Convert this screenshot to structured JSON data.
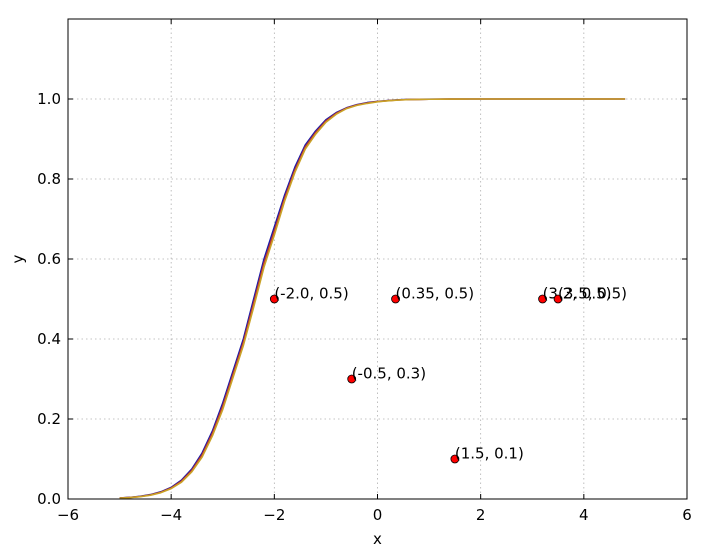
{
  "chart_data": {
    "type": "line",
    "title": "",
    "xlabel": "x",
    "ylabel": "y",
    "xlim": [
      -6,
      6
    ],
    "ylim": [
      0,
      1.2
    ],
    "xticks": [
      -6,
      -4,
      -2,
      0,
      2,
      4,
      6
    ],
    "yticks": [
      0.0,
      0.2,
      0.4,
      0.6,
      0.8,
      1.0
    ],
    "xtick_labels": [
      "−6",
      "−4",
      "−2",
      "0",
      "2",
      "4",
      "6"
    ],
    "ytick_labels": [
      "0.0",
      "0.2",
      "0.4",
      "0.6",
      "0.8",
      "1.0"
    ],
    "grid": true,
    "series": [
      {
        "color": "#1a1aa8",
        "x": [
          -5.0,
          -4.8,
          -4.6,
          -4.4,
          -4.2,
          -4.0,
          -3.8,
          -3.6,
          -3.4,
          -3.2,
          -3.0,
          -2.8,
          -2.6,
          -2.4,
          -2.2,
          -2.0,
          -1.8,
          -1.6,
          -1.4,
          -1.2,
          -1.0,
          -0.8,
          -0.6,
          -0.4,
          -0.2,
          0.0,
          0.2,
          0.4,
          0.6,
          0.8,
          1.0,
          1.2,
          1.4,
          1.6,
          1.8,
          2.0,
          2.4,
          2.8,
          3.2,
          3.6,
          4.0,
          4.4,
          4.8
        ],
        "y": [
          0.0025,
          0.0041,
          0.0067,
          0.011,
          0.018,
          0.029,
          0.047,
          0.075,
          0.115,
          0.17,
          0.24,
          0.32,
          0.4,
          0.5,
          0.6,
          0.68,
          0.76,
          0.83,
          0.885,
          0.92,
          0.948,
          0.966,
          0.978,
          0.986,
          0.991,
          0.994,
          0.996,
          0.998,
          0.999,
          0.9992,
          0.9995,
          0.9997,
          0.9998,
          0.9999,
          1.0,
          1.0,
          1.0,
          1.0,
          1.0,
          1.0,
          1.0,
          1.0,
          1.0
        ]
      },
      {
        "color": "#c0392b",
        "x": [
          -5.0,
          -4.8,
          -4.6,
          -4.4,
          -4.2,
          -4.0,
          -3.8,
          -3.6,
          -3.4,
          -3.2,
          -3.0,
          -2.8,
          -2.6,
          -2.4,
          -2.2,
          -2.0,
          -1.8,
          -1.6,
          -1.4,
          -1.2,
          -1.0,
          -0.8,
          -0.6,
          -0.4,
          -0.2,
          0.0,
          0.2,
          0.4,
          0.6,
          0.8,
          1.0,
          1.2,
          1.4,
          1.6,
          1.8,
          2.0,
          2.4,
          2.8,
          3.2,
          3.6,
          4.0,
          4.4,
          4.8
        ],
        "y": [
          0.0023,
          0.0038,
          0.0062,
          0.0102,
          0.0168,
          0.0275,
          0.0445,
          0.0715,
          0.11,
          0.164,
          0.232,
          0.312,
          0.392,
          0.49,
          0.59,
          0.67,
          0.752,
          0.823,
          0.88,
          0.916,
          0.945,
          0.964,
          0.977,
          0.985,
          0.99,
          0.9935,
          0.9958,
          0.9975,
          0.9987,
          0.999,
          0.9994,
          0.9996,
          0.9998,
          0.9999,
          1.0,
          1.0,
          1.0,
          1.0,
          1.0,
          1.0,
          1.0,
          1.0,
          1.0
        ]
      },
      {
        "color": "#c9a227",
        "x": [
          -5.0,
          -4.8,
          -4.6,
          -4.4,
          -4.2,
          -4.0,
          -3.8,
          -3.6,
          -3.4,
          -3.2,
          -3.0,
          -2.8,
          -2.6,
          -2.4,
          -2.2,
          -2.0,
          -1.8,
          -1.6,
          -1.4,
          -1.2,
          -1.0,
          -0.8,
          -0.6,
          -0.4,
          -0.2,
          0.0,
          0.2,
          0.4,
          0.6,
          0.8,
          1.0,
          1.2,
          1.4,
          1.6,
          1.8,
          2.0,
          2.4,
          2.8,
          3.2,
          3.6,
          4.0,
          4.4,
          4.8
        ],
        "y": [
          0.0021,
          0.0035,
          0.0058,
          0.0096,
          0.0158,
          0.026,
          0.042,
          0.068,
          0.105,
          0.158,
          0.224,
          0.304,
          0.384,
          0.48,
          0.58,
          0.66,
          0.745,
          0.817,
          0.875,
          0.912,
          0.942,
          0.962,
          0.976,
          0.984,
          0.989,
          0.993,
          0.9955,
          0.9973,
          0.9986,
          0.999,
          0.9994,
          0.9996,
          0.9998,
          0.9999,
          1.0,
          1.0,
          1.0,
          1.0,
          1.0,
          1.0,
          1.0,
          1.0,
          1.0
        ]
      }
    ],
    "points": [
      {
        "x": -2.0,
        "y": 0.5,
        "label": "(-2.0, 0.5)"
      },
      {
        "x": 0.35,
        "y": 0.5,
        "label": "(0.35, 0.5)"
      },
      {
        "x": 3.2,
        "y": 0.5,
        "label": "(3.2, 0.5)"
      },
      {
        "x": 3.5,
        "y": 0.5,
        "label": "(3.5, 0.5)"
      },
      {
        "x": -0.5,
        "y": 0.3,
        "label": "(-0.5, 0.3)"
      },
      {
        "x": 1.5,
        "y": 0.1,
        "label": "(1.5, 0.1)"
      }
    ],
    "point_color": "#ff0000"
  }
}
